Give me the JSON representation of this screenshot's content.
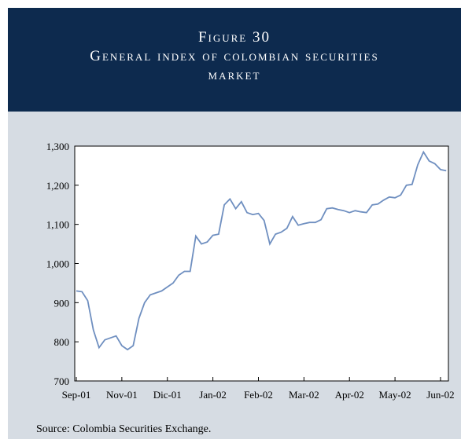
{
  "chart_data": {
    "type": "line",
    "title": "Figure 30",
    "subtitle": "General index of colombian securities market",
    "source": "Source: Colombia Securities Exchange.",
    "categories": [
      "Sep-01",
      null,
      null,
      null,
      null,
      null,
      null,
      null,
      "Nov-01",
      null,
      null,
      null,
      null,
      null,
      null,
      null,
      "Dic-01",
      null,
      null,
      null,
      null,
      null,
      null,
      null,
      "Jan-02",
      null,
      null,
      null,
      null,
      null,
      null,
      null,
      "Feb-02",
      null,
      null,
      null,
      null,
      null,
      null,
      null,
      "Mar-02",
      null,
      null,
      null,
      null,
      null,
      null,
      null,
      "Apr-02",
      null,
      null,
      null,
      null,
      null,
      null,
      null,
      "May-02",
      null,
      null,
      null,
      null,
      null,
      null,
      null,
      "Jun-02",
      null
    ],
    "series": [
      {
        "color": "#6f8fc0",
        "values": [
          930,
          928,
          905,
          830,
          785,
          805,
          810,
          815,
          790,
          780,
          790,
          860,
          900,
          920,
          925,
          930,
          940,
          950,
          970,
          980,
          980,
          1070,
          1050,
          1055,
          1072,
          1075,
          1150,
          1165,
          1140,
          1158,
          1130,
          1125,
          1128,
          1110,
          1050,
          1075,
          1080,
          1090,
          1120,
          1098,
          1102,
          1105,
          1105,
          1112,
          1140,
          1142,
          1138,
          1135,
          1130,
          1135,
          1132,
          1130,
          1150,
          1152,
          1162,
          1170,
          1168,
          1175,
          1200,
          1202,
          1252,
          1285,
          1262,
          1255,
          1240,
          1237
        ]
      }
    ],
    "ylim": [
      700,
      1300
    ],
    "yticks": [
      700,
      800,
      900,
      {
        "value": 1000,
        "label": "1,000"
      },
      {
        "value": 1100,
        "label": "1,100"
      },
      {
        "value": 1200,
        "label": "1,200"
      },
      {
        "value": 1300,
        "label": "1,300"
      }
    ]
  }
}
